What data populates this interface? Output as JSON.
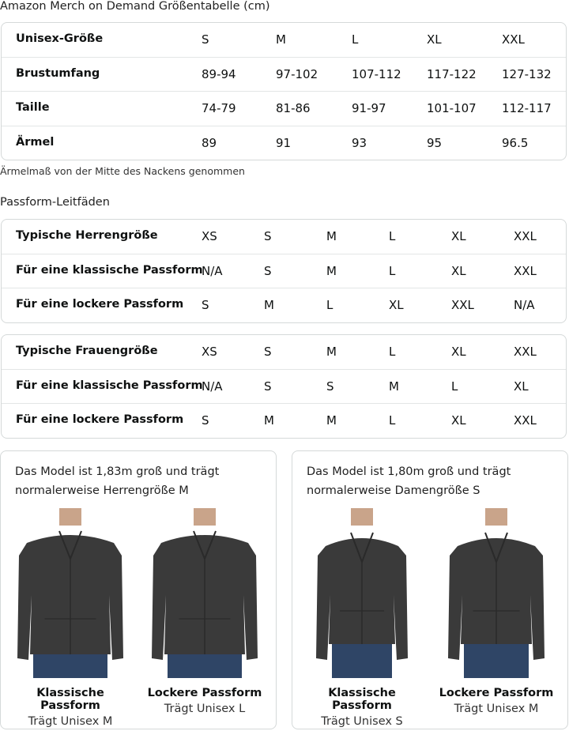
{
  "title": "Amazon Merch on Demand Größentabelle (cm)",
  "size_table": {
    "rows": [
      [
        "Unisex-Größe",
        "S",
        "M",
        "L",
        "XL",
        "XXL"
      ],
      [
        "Brustumfang",
        "89-94",
        "97-102",
        "107-112",
        "117-122",
        "127-132"
      ],
      [
        "Taille",
        "74-79",
        "81-86",
        "91-97",
        "101-107",
        "112-117"
      ],
      [
        "Ärmel",
        "89",
        "91",
        "93",
        "95",
        "96.5"
      ]
    ]
  },
  "note": "Ärmelmaß von der Mitte des Nackens genommen",
  "fit_title": "Passform-Leitfäden",
  "men_table": {
    "rows": [
      [
        "Typische Herrengröße",
        "XS",
        "S",
        "M",
        "L",
        "XL",
        "XXL"
      ],
      [
        "Für eine klassische Passform",
        "N/A",
        "S",
        "M",
        "L",
        "XL",
        "XXL"
      ],
      [
        "Für eine lockere Passform",
        "S",
        "M",
        "L",
        "XL",
        "XXL",
        "N/A"
      ]
    ]
  },
  "women_table": {
    "rows": [
      [
        "Typische Frauengröße",
        "XS",
        "S",
        "M",
        "L",
        "XL",
        "XXL"
      ],
      [
        "Für eine klassische Passform",
        "N/A",
        "S",
        "S",
        "M",
        "L",
        "XL"
      ],
      [
        "Für eine lockere Passform",
        "S",
        "M",
        "M",
        "L",
        "XL",
        "XXL"
      ]
    ]
  },
  "cards": [
    {
      "desc": "Das Model ist 1,83m groß und trägt normalerweise Herrengröße M",
      "models": [
        {
          "fit": "Klassische Passform",
          "wears": "Trägt Unisex M"
        },
        {
          "fit": "Lockere Passform",
          "wears": "Trägt Unisex L"
        }
      ]
    },
    {
      "desc": "Das Model ist 1,80m groß und trägt normalerweise Damengröße S",
      "models": [
        {
          "fit": "Klassische Passform",
          "wears": "Trägt Unisex S"
        },
        {
          "fit": "Lockere Passform",
          "wears": "Trägt Unisex M"
        }
      ]
    }
  ],
  "colors": {
    "hoodie": "#3a3a3a",
    "jeans": "#2f4566",
    "border": "#d5d9d9"
  }
}
